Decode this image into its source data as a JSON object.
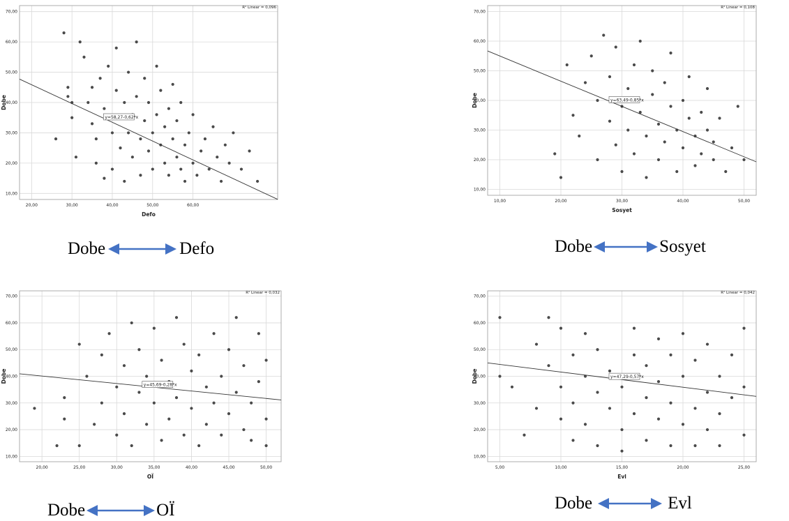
{
  "captions": [
    {
      "left": "Dobe",
      "right": "Defo"
    },
    {
      "left": "Dobe",
      "right": "Sosyet"
    },
    {
      "left": "Dobe",
      "right": "OÏ"
    },
    {
      "left": "Dobe",
      "right": "Evl"
    }
  ],
  "colors": {
    "point": "#4a4a4a",
    "grid": "#d9d9d9",
    "frame": "#9a9a9a",
    "arrow": "#4472c4",
    "line": "#333333"
  },
  "chart_data": [
    {
      "type": "scatter",
      "xlabel": "Defo",
      "ylabel": "Dobe",
      "xlim": [
        17,
        81
      ],
      "ylim": [
        8,
        72
      ],
      "xticks": [
        "20,00",
        "30,00",
        "40,00",
        "50,00",
        "60,00"
      ],
      "xtick_values": [
        20,
        30,
        40,
        50,
        60
      ],
      "yticks": [
        "10,00",
        "20,00",
        "30,00",
        "40,00",
        "50,00",
        "60,00",
        "70,00"
      ],
      "ytick_values": [
        10,
        20,
        30,
        40,
        50,
        60,
        70
      ],
      "grid": true,
      "r2_label": "R² Linear = 0,096",
      "fit_label": "y=58,27-0,62*x",
      "fit": {
        "intercept": 58.27,
        "slope": -0.62
      },
      "fit_label_x": 38,
      "points": [
        [
          26,
          28
        ],
        [
          28,
          63
        ],
        [
          29,
          42
        ],
        [
          29,
          45
        ],
        [
          30,
          35
        ],
        [
          30,
          40
        ],
        [
          31,
          22
        ],
        [
          32,
          60
        ],
        [
          33,
          55
        ],
        [
          34,
          40
        ],
        [
          35,
          33
        ],
        [
          35,
          45
        ],
        [
          36,
          20
        ],
        [
          36,
          28
        ],
        [
          37,
          48
        ],
        [
          38,
          38
        ],
        [
          38,
          15
        ],
        [
          39,
          52
        ],
        [
          40,
          30
        ],
        [
          40,
          18
        ],
        [
          41,
          44
        ],
        [
          41,
          58
        ],
        [
          42,
          35
        ],
        [
          42,
          25
        ],
        [
          43,
          40
        ],
        [
          43,
          14
        ],
        [
          44,
          50
        ],
        [
          44,
          30
        ],
        [
          45,
          36
        ],
        [
          45,
          22
        ],
        [
          46,
          42
        ],
        [
          46,
          60
        ],
        [
          47,
          28
        ],
        [
          47,
          16
        ],
        [
          48,
          34
        ],
        [
          48,
          48
        ],
        [
          49,
          24
        ],
        [
          49,
          40
        ],
        [
          50,
          30
        ],
        [
          50,
          18
        ],
        [
          51,
          36
        ],
        [
          51,
          52
        ],
        [
          52,
          26
        ],
        [
          52,
          44
        ],
        [
          53,
          20
        ],
        [
          53,
          32
        ],
        [
          54,
          38
        ],
        [
          54,
          16
        ],
        [
          55,
          28
        ],
        [
          55,
          46
        ],
        [
          56,
          22
        ],
        [
          56,
          34
        ],
        [
          57,
          18
        ],
        [
          57,
          40
        ],
        [
          58,
          26
        ],
        [
          58,
          14
        ],
        [
          59,
          30
        ],
        [
          60,
          20
        ],
        [
          60,
          36
        ],
        [
          61,
          16
        ],
        [
          62,
          24
        ],
        [
          63,
          28
        ],
        [
          64,
          18
        ],
        [
          65,
          32
        ],
        [
          66,
          22
        ],
        [
          67,
          14
        ],
        [
          68,
          26
        ],
        [
          69,
          20
        ],
        [
          70,
          30
        ],
        [
          72,
          18
        ],
        [
          74,
          24
        ],
        [
          76,
          14
        ]
      ]
    },
    {
      "type": "scatter",
      "xlabel": "Sosyet",
      "ylabel": "Dobe",
      "xlim": [
        8,
        52
      ],
      "ylim": [
        8,
        72
      ],
      "xticks": [
        "10,00",
        "20,00",
        "30,00",
        "40,00",
        "50,00"
      ],
      "xtick_values": [
        10,
        20,
        30,
        40,
        50
      ],
      "yticks": [
        "10,00",
        "20,00",
        "30,00",
        "40,00",
        "50,00",
        "60,00",
        "70,00"
      ],
      "ytick_values": [
        10,
        20,
        30,
        40,
        50,
        60,
        70
      ],
      "grid": true,
      "r2_label": "R² Linear = 0,108",
      "fit_label": "y=63,49-0,85*x",
      "fit": {
        "intercept": 63.49,
        "slope": -0.85
      },
      "fit_label_x": 28,
      "points": [
        [
          19,
          22
        ],
        [
          20,
          14
        ],
        [
          21,
          52
        ],
        [
          22,
          35
        ],
        [
          23,
          28
        ],
        [
          24,
          46
        ],
        [
          25,
          55
        ],
        [
          26,
          40
        ],
        [
          26,
          20
        ],
        [
          27,
          62
        ],
        [
          28,
          33
        ],
        [
          28,
          48
        ],
        [
          29,
          25
        ],
        [
          29,
          58
        ],
        [
          30,
          38
        ],
        [
          30,
          16
        ],
        [
          31,
          44
        ],
        [
          31,
          30
        ],
        [
          32,
          52
        ],
        [
          32,
          22
        ],
        [
          33,
          36
        ],
        [
          33,
          60
        ],
        [
          34,
          28
        ],
        [
          34,
          14
        ],
        [
          35,
          42
        ],
        [
          35,
          50
        ],
        [
          36,
          32
        ],
        [
          36,
          20
        ],
        [
          37,
          46
        ],
        [
          37,
          26
        ],
        [
          38,
          38
        ],
        [
          38,
          56
        ],
        [
          39,
          30
        ],
        [
          39,
          16
        ],
        [
          40,
          40
        ],
        [
          40,
          24
        ],
        [
          41,
          34
        ],
        [
          41,
          48
        ],
        [
          42,
          28
        ],
        [
          42,
          18
        ],
        [
          43,
          36
        ],
        [
          43,
          22
        ],
        [
          44,
          30
        ],
        [
          44,
          44
        ],
        [
          45,
          20
        ],
        [
          45,
          26
        ],
        [
          46,
          34
        ],
        [
          47,
          16
        ],
        [
          48,
          24
        ],
        [
          49,
          38
        ],
        [
          50,
          20
        ]
      ]
    },
    {
      "type": "scatter",
      "xlabel": "OÏ",
      "ylabel": "Dobe",
      "xlim": [
        17,
        52
      ],
      "ylim": [
        8,
        72
      ],
      "xticks": [
        "20,00",
        "25,00",
        "30,00",
        "35,00",
        "40,00",
        "45,00",
        "50,00"
      ],
      "xtick_values": [
        20,
        25,
        30,
        35,
        40,
        45,
        50
      ],
      "yticks": [
        "10,00",
        "20,00",
        "30,00",
        "40,00",
        "50,00",
        "60,00",
        "70,00"
      ],
      "ytick_values": [
        10,
        20,
        30,
        40,
        50,
        60,
        70
      ],
      "grid": true,
      "r2_label": "R² Linear = 0,032",
      "fit_label": "y=45,69-0,28*x",
      "fit": {
        "intercept": 45.69,
        "slope": -0.28
      },
      "fit_label_x": 33.5,
      "points": [
        [
          19,
          28
        ],
        [
          22,
          14
        ],
        [
          23,
          24
        ],
        [
          23,
          32
        ],
        [
          25,
          14
        ],
        [
          25,
          52
        ],
        [
          26,
          40
        ],
        [
          27,
          22
        ],
        [
          28,
          48
        ],
        [
          28,
          30
        ],
        [
          29,
          56
        ],
        [
          30,
          36
        ],
        [
          30,
          18
        ],
        [
          31,
          44
        ],
        [
          31,
          26
        ],
        [
          32,
          60
        ],
        [
          32,
          14
        ],
        [
          33,
          34
        ],
        [
          33,
          50
        ],
        [
          34,
          22
        ],
        [
          34,
          40
        ],
        [
          35,
          58
        ],
        [
          35,
          30
        ],
        [
          36,
          16
        ],
        [
          36,
          46
        ],
        [
          37,
          38
        ],
        [
          37,
          24
        ],
        [
          38,
          62
        ],
        [
          38,
          32
        ],
        [
          39,
          18
        ],
        [
          39,
          52
        ],
        [
          40,
          42
        ],
        [
          40,
          28
        ],
        [
          41,
          14
        ],
        [
          41,
          48
        ],
        [
          42,
          36
        ],
        [
          42,
          22
        ],
        [
          43,
          56
        ],
        [
          43,
          30
        ],
        [
          44,
          40
        ],
        [
          44,
          18
        ],
        [
          45,
          50
        ],
        [
          45,
          26
        ],
        [
          46,
          34
        ],
        [
          46,
          62
        ],
        [
          47,
          20
        ],
        [
          47,
          44
        ],
        [
          48,
          30
        ],
        [
          48,
          16
        ],
        [
          49,
          38
        ],
        [
          49,
          56
        ],
        [
          50,
          24
        ],
        [
          50,
          46
        ],
        [
          50,
          14
        ]
      ]
    },
    {
      "type": "scatter",
      "xlabel": "Evl",
      "ylabel": "Dobe",
      "xlim": [
        4,
        26
      ],
      "ylim": [
        8,
        72
      ],
      "xticks": [
        "5,00",
        "10,00",
        "15,00",
        "20,00",
        "25,00"
      ],
      "xtick_values": [
        5,
        10,
        15,
        20,
        25
      ],
      "yticks": [
        "10,00",
        "20,00",
        "30,00",
        "40,00",
        "50,00",
        "60,00",
        "70,00"
      ],
      "ytick_values": [
        10,
        20,
        30,
        40,
        50,
        60,
        70
      ],
      "grid": true,
      "r2_label": "R² Linear = 0,042",
      "fit_label": "y=47,29-0,57*x",
      "fit": {
        "intercept": 47.29,
        "slope": -0.57
      },
      "fit_label_x": 14,
      "points": [
        [
          5,
          62
        ],
        [
          5,
          40
        ],
        [
          6,
          36
        ],
        [
          7,
          18
        ],
        [
          8,
          52
        ],
        [
          8,
          28
        ],
        [
          9,
          62
        ],
        [
          9,
          44
        ],
        [
          10,
          24
        ],
        [
          10,
          36
        ],
        [
          10,
          58
        ],
        [
          11,
          16
        ],
        [
          11,
          48
        ],
        [
          11,
          30
        ],
        [
          12,
          40
        ],
        [
          12,
          22
        ],
        [
          12,
          56
        ],
        [
          13,
          34
        ],
        [
          13,
          14
        ],
        [
          13,
          50
        ],
        [
          14,
          28
        ],
        [
          14,
          42
        ],
        [
          15,
          20
        ],
        [
          15,
          36
        ],
        [
          15,
          12
        ],
        [
          16,
          48
        ],
        [
          16,
          26
        ],
        [
          16,
          58
        ],
        [
          17,
          32
        ],
        [
          17,
          16
        ],
        [
          17,
          44
        ],
        [
          18,
          24
        ],
        [
          18,
          54
        ],
        [
          18,
          38
        ],
        [
          19,
          14
        ],
        [
          19,
          30
        ],
        [
          19,
          48
        ],
        [
          20,
          22
        ],
        [
          20,
          40
        ],
        [
          20,
          56
        ],
        [
          21,
          28
        ],
        [
          21,
          14
        ],
        [
          21,
          46
        ],
        [
          22,
          34
        ],
        [
          22,
          20
        ],
        [
          22,
          52
        ],
        [
          23,
          26
        ],
        [
          23,
          40
        ],
        [
          23,
          14
        ],
        [
          24,
          32
        ],
        [
          24,
          48
        ],
        [
          25,
          18
        ],
        [
          25,
          36
        ],
        [
          25,
          58
        ]
      ]
    }
  ]
}
